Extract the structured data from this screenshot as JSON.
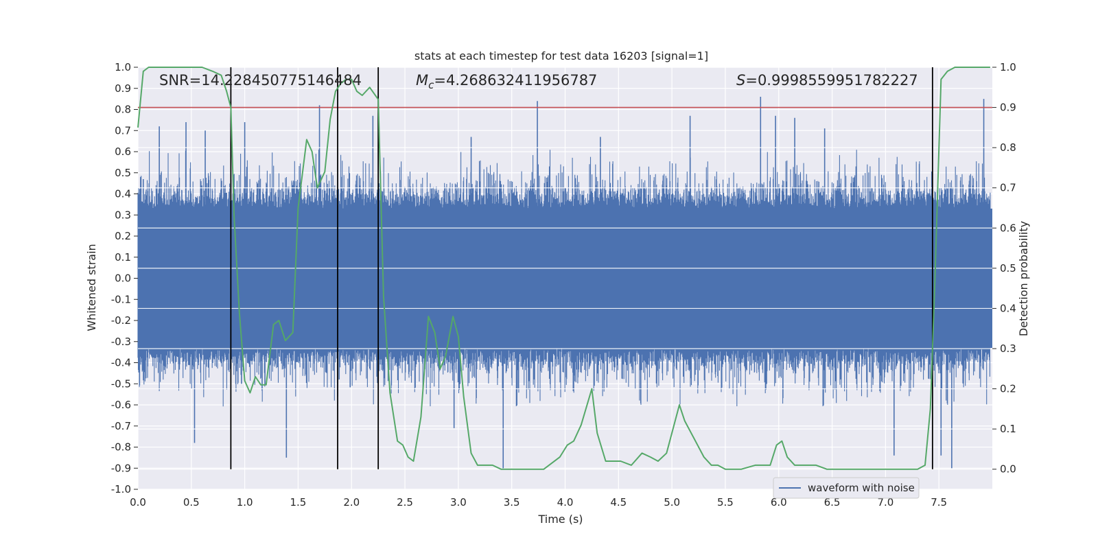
{
  "chart_data": {
    "type": "line",
    "title": "stats at each timestep for test data 16203 [signal=1]",
    "xlabel": "Time (s)",
    "ylabel_left": "Whitened strain",
    "ylabel_right": "Detection probability",
    "xlim": [
      0.0,
      8.0
    ],
    "ylim_left": [
      -1.0,
      1.0
    ],
    "ylim_right": [
      -0.05,
      1.0
    ],
    "x_ticks": [
      "0.0",
      "0.5",
      "1.0",
      "1.5",
      "2.0",
      "2.5",
      "3.0",
      "3.5",
      "4.0",
      "4.5",
      "5.0",
      "5.5",
      "6.0",
      "6.5",
      "7.0",
      "7.5"
    ],
    "y_ticks_left": [
      "-1.0",
      "-0.9",
      "-0.8",
      "-0.7",
      "-0.6",
      "-0.5",
      "-0.4",
      "-0.3",
      "-0.2",
      "-0.1",
      "0.0",
      "0.1",
      "0.2",
      "0.3",
      "0.4",
      "0.5",
      "0.6",
      "0.7",
      "0.8",
      "0.9",
      "1.0"
    ],
    "y_ticks_right": [
      "0.0",
      "0.1",
      "0.2",
      "0.3",
      "0.4",
      "0.5",
      "0.6",
      "0.7",
      "0.8",
      "0.9",
      "1.0"
    ],
    "grid": true,
    "legend_placement": "lower-right",
    "annotations": {
      "snr": "SNR=14.228450775146484",
      "mc_symbol": "M",
      "mc_sub": "c",
      "mc_value": "=4.268632411956787",
      "s_symbol": "S",
      "s_value": "=0.9998559951782227"
    },
    "threshold": {
      "value": 0.9,
      "axis": "right",
      "color": "#c44e52"
    },
    "vertical_markers": [
      0.87,
      1.87,
      2.25,
      7.44
    ],
    "series": [
      {
        "name": "waveform with noise",
        "axis": "left",
        "color": "#4c72b0",
        "style": "dense-noise",
        "core_amplitude": 0.33,
        "noise_sigma": 0.28,
        "peaks": [
          [
            0.05,
            0.47
          ],
          [
            0.2,
            0.72
          ],
          [
            0.45,
            0.74
          ],
          [
            0.53,
            -0.78
          ],
          [
            0.63,
            0.7
          ],
          [
            0.97,
            -0.5
          ],
          [
            1.0,
            0.74
          ],
          [
            1.39,
            -0.85
          ],
          [
            1.7,
            0.82
          ],
          [
            2.2,
            0.77
          ],
          [
            2.96,
            -0.71
          ],
          [
            3.12,
            0.67
          ],
          [
            3.42,
            -0.9
          ],
          [
            3.74,
            0.84
          ],
          [
            4.33,
            0.67
          ],
          [
            5.17,
            0.77
          ],
          [
            5.83,
            0.86
          ],
          [
            5.97,
            0.77
          ],
          [
            6.15,
            0.76
          ],
          [
            6.43,
            0.71
          ],
          [
            7.08,
            -0.84
          ],
          [
            7.52,
            -0.84
          ],
          [
            7.62,
            -0.9
          ],
          [
            7.92,
            0.85
          ]
        ]
      },
      {
        "name": "",
        "axis": "right",
        "color": "#55a868",
        "x": [
          0.0,
          0.05,
          0.1,
          0.2,
          0.3,
          0.4,
          0.5,
          0.6,
          0.7,
          0.78,
          0.83,
          0.87,
          0.9,
          0.95,
          1.0,
          1.05,
          1.1,
          1.15,
          1.2,
          1.27,
          1.32,
          1.38,
          1.45,
          1.5,
          1.58,
          1.63,
          1.68,
          1.75,
          1.8,
          1.85,
          1.9,
          1.95,
          2.0,
          2.05,
          2.1,
          2.17,
          2.25,
          2.3,
          2.36,
          2.43,
          2.48,
          2.53,
          2.58,
          2.65,
          2.72,
          2.78,
          2.83,
          2.88,
          2.95,
          3.0,
          3.05,
          3.12,
          3.18,
          3.25,
          3.32,
          3.4,
          3.6,
          3.8,
          3.95,
          4.02,
          4.08,
          4.15,
          4.25,
          4.3,
          4.38,
          4.45,
          4.52,
          4.62,
          4.72,
          4.8,
          4.87,
          4.95,
          5.0,
          5.07,
          5.12,
          5.2,
          5.3,
          5.37,
          5.43,
          5.5,
          5.65,
          5.78,
          5.87,
          5.92,
          5.98,
          6.03,
          6.08,
          6.15,
          6.25,
          6.35,
          6.45,
          6.6,
          6.8,
          7.0,
          7.2,
          7.3,
          7.37,
          7.42,
          7.46,
          7.52,
          7.58,
          7.65,
          7.8,
          7.98
        ],
        "values": [
          0.85,
          0.99,
          1.0,
          1.0,
          1.0,
          1.0,
          1.0,
          1.0,
          0.99,
          0.98,
          0.94,
          0.9,
          0.63,
          0.39,
          0.22,
          0.19,
          0.23,
          0.21,
          0.21,
          0.36,
          0.37,
          0.32,
          0.34,
          0.65,
          0.82,
          0.79,
          0.7,
          0.74,
          0.87,
          0.94,
          0.96,
          0.97,
          0.97,
          0.94,
          0.93,
          0.95,
          0.92,
          0.43,
          0.19,
          0.07,
          0.06,
          0.03,
          0.02,
          0.13,
          0.38,
          0.34,
          0.25,
          0.28,
          0.38,
          0.33,
          0.18,
          0.04,
          0.01,
          0.01,
          0.01,
          0.0,
          0.0,
          0.0,
          0.03,
          0.06,
          0.07,
          0.11,
          0.2,
          0.09,
          0.02,
          0.02,
          0.02,
          0.01,
          0.04,
          0.03,
          0.02,
          0.04,
          0.09,
          0.16,
          0.12,
          0.08,
          0.03,
          0.01,
          0.01,
          0.0,
          0.0,
          0.01,
          0.01,
          0.01,
          0.06,
          0.07,
          0.03,
          0.01,
          0.01,
          0.01,
          0.0,
          0.0,
          0.0,
          0.0,
          0.0,
          0.0,
          0.01,
          0.15,
          0.45,
          0.97,
          0.99,
          1.0,
          1.0,
          1.0
        ]
      }
    ]
  }
}
